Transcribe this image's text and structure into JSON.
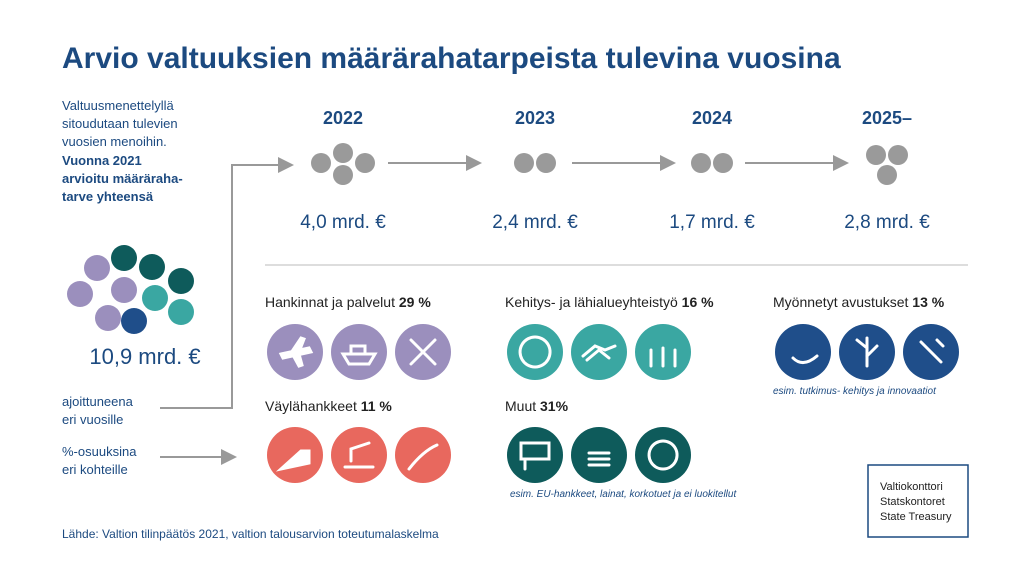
{
  "title": "Arvio valtuuksien määrärahatarpeista tulevina vuosina",
  "intro": {
    "lines": [
      "Valtuusmenettelyllä",
      "sitoudutaan tulevien",
      "vuosien menoihin."
    ],
    "bold_lines": [
      "Vuonna 2021",
      "arvioitu määräraha-",
      "tarve yhteensä"
    ]
  },
  "total": "10,9 mrd. €",
  "timed_label": [
    "ajoittuneena",
    "eri vuosille"
  ],
  "share_label": [
    "%-osuuksina",
    "eri kohteille"
  ],
  "timeline": [
    {
      "year": "2022",
      "amount": "4,0 mrd. €"
    },
    {
      "year": "2023",
      "amount": "2,4 mrd. €"
    },
    {
      "year": "2024",
      "amount": "1,7 mrd. €"
    },
    {
      "year": "2025–",
      "amount": "2,8 mrd. €"
    }
  ],
  "categories": [
    {
      "name": "Hankinnat ja palvelut",
      "share": "29 %"
    },
    {
      "name": "Kehitys- ja lähialueyhteistyö",
      "share": "16 %"
    },
    {
      "name": "Myönnetyt avustukset",
      "share": "13 %",
      "note": "esim. tutkimus- kehitys ja innovaatiot"
    },
    {
      "name": "Väylähankkeet",
      "share": "11 %"
    },
    {
      "name": "Muut",
      "share": "31%",
      "note": "esim. EU-hankkeet, lainat, korkotuet ja ei luokitellut"
    }
  ],
  "logo": [
    "Valtiokonttori",
    "Statskontoret",
    "State Treasury"
  ],
  "source": "Lähde: Valtion tilinpäätös 2021, valtion talousarvion toteutumalaskelma"
}
